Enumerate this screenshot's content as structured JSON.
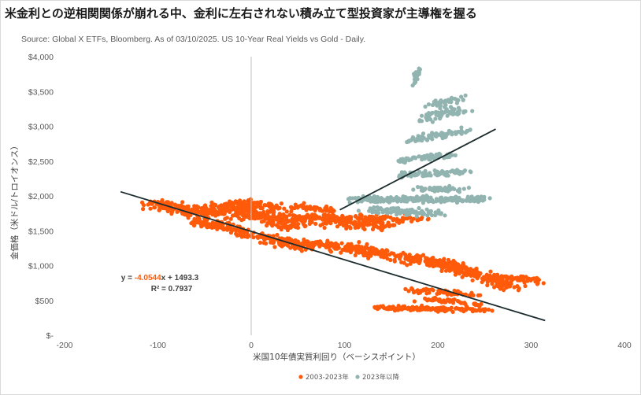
{
  "header": {
    "title": "米金利との逆相関関係が崩れる中、金利に左右されない積み立て型投資家が主導権を握る",
    "source": "Source: Global X ETFs, Bloomberg. As of 03/10/2025. US 10-Year Real Yields vs Gold - Daily."
  },
  "colors": {
    "series_2003_2023": "#ff5a0a",
    "series_2023_after": "#92b4b0",
    "trendline": "#1c2c2e",
    "zero_line": "#bfbfbf"
  },
  "chart_data": {
    "type": "scatter",
    "title": "",
    "xlabel": "米国10年債実質利回り（ベーシスポイント）",
    "ylabel": "金価格（米ドル/トロイオンス）",
    "xlim": [
      -200,
      400
    ],
    "ylim": [
      0,
      4000
    ],
    "x_ticks": [
      -200,
      -100,
      0,
      100,
      200,
      300,
      400
    ],
    "x_tick_labels": [
      "-200",
      "-100",
      "0",
      "100",
      "200",
      "300",
      "400"
    ],
    "y_ticks": [
      0,
      500,
      1000,
      1500,
      2000,
      2500,
      3000,
      3500,
      4000
    ],
    "y_tick_labels": [
      "$-",
      "$500",
      "$1,000",
      "$1,500",
      "$2,000",
      "$2,500",
      "$3,000",
      "$3,500",
      "$4,000"
    ],
    "grid": false,
    "legend_position": "bottom",
    "series": [
      {
        "name": "2003-2023年",
        "clusters": [
          {
            "x_from": -110,
            "y_from": 1880,
            "x_to": -40,
            "y_to": 1760,
            "spread_x": 16,
            "spread_y": 70,
            "n": 170
          },
          {
            "x_from": -40,
            "y_from": 1850,
            "x_to": 50,
            "y_to": 1600,
            "spread_x": 18,
            "spread_y": 110,
            "n": 260
          },
          {
            "x_from": -20,
            "y_from": 1900,
            "x_to": 30,
            "y_to": 1850,
            "spread_x": 12,
            "spread_y": 60,
            "n": 80
          },
          {
            "x_from": 40,
            "y_from": 1850,
            "x_to": 90,
            "y_to": 1800,
            "spread_x": 14,
            "spread_y": 50,
            "n": 50
          },
          {
            "x_from": 50,
            "y_from": 1700,
            "x_to": 140,
            "y_to": 1550,
            "spread_x": 18,
            "spread_y": 80,
            "n": 120
          },
          {
            "x_from": -60,
            "y_from": 1650,
            "x_to": 60,
            "y_to": 1250,
            "spread_x": 14,
            "spread_y": 60,
            "n": 220
          },
          {
            "x_from": 30,
            "y_from": 1350,
            "x_to": 130,
            "y_to": 1250,
            "spread_x": 16,
            "spread_y": 60,
            "n": 120
          },
          {
            "x_from": 100,
            "y_from": 1250,
            "x_to": 220,
            "y_to": 1000,
            "spread_x": 14,
            "spread_y": 70,
            "n": 200
          },
          {
            "x_from": 200,
            "y_from": 1050,
            "x_to": 280,
            "y_to": 700,
            "spread_x": 14,
            "spread_y": 70,
            "n": 170
          },
          {
            "x_from": 250,
            "y_from": 850,
            "x_to": 315,
            "y_to": 780,
            "spread_x": 14,
            "spread_y": 40,
            "n": 70
          },
          {
            "x_from": 70,
            "y_from": 1700,
            "x_to": 170,
            "y_to": 1650,
            "spread_x": 30,
            "spread_y": 70,
            "n": 130
          },
          {
            "x_from": 170,
            "y_from": 650,
            "x_to": 240,
            "y_to": 580,
            "spread_x": 12,
            "spread_y": 40,
            "n": 60
          },
          {
            "x_from": 135,
            "y_from": 400,
            "x_to": 245,
            "y_to": 360,
            "spread_x": 22,
            "spread_y": 30,
            "n": 170
          },
          {
            "x_from": 190,
            "y_from": 520,
            "x_to": 240,
            "y_to": 450,
            "spread_x": 14,
            "spread_y": 35,
            "n": 50
          }
        ]
      },
      {
        "name": "2023年以降",
        "clusters": [
          {
            "x_from": 110,
            "y_from": 1950,
            "x_to": 250,
            "y_to": 1950,
            "spread_x": 14,
            "spread_y": 40,
            "n": 240
          },
          {
            "x_from": 130,
            "y_from": 1800,
            "x_to": 200,
            "y_to": 1750,
            "spread_x": 12,
            "spread_y": 50,
            "n": 100
          },
          {
            "x_from": 180,
            "y_from": 2100,
            "x_to": 225,
            "y_to": 2100,
            "spread_x": 10,
            "spread_y": 40,
            "n": 50
          },
          {
            "x_from": 160,
            "y_from": 2300,
            "x_to": 235,
            "y_to": 2350,
            "spread_x": 10,
            "spread_y": 40,
            "n": 80
          },
          {
            "x_from": 155,
            "y_from": 2500,
            "x_to": 215,
            "y_to": 2600,
            "spread_x": 10,
            "spread_y": 40,
            "n": 60
          },
          {
            "x_from": 170,
            "y_from": 2800,
            "x_to": 235,
            "y_to": 2950,
            "spread_x": 10,
            "spread_y": 50,
            "n": 70
          },
          {
            "x_from": 185,
            "y_from": 3100,
            "x_to": 225,
            "y_to": 3250,
            "spread_x": 12,
            "spread_y": 60,
            "n": 60
          },
          {
            "x_from": 190,
            "y_from": 3300,
            "x_to": 225,
            "y_to": 3400,
            "spread_x": 10,
            "spread_y": 40,
            "n": 40
          },
          {
            "x_from": 175,
            "y_from": 3600,
            "x_to": 180,
            "y_to": 3880,
            "spread_x": 4,
            "spread_y": 40,
            "n": 20
          }
        ]
      }
    ],
    "trendlines": [
      {
        "x": [
          -140,
          315
        ],
        "y": [
          2060,
          210
        ]
      },
      {
        "x": [
          95,
          262
        ],
        "y": [
          1800,
          2960
        ]
      }
    ],
    "annotation": {
      "prefix": "y = ",
      "slope": "-4.0544",
      "suffix": "x + 1493.3",
      "r2": "R² = 0.7937",
      "slope_color": "#ff5a0a"
    }
  }
}
